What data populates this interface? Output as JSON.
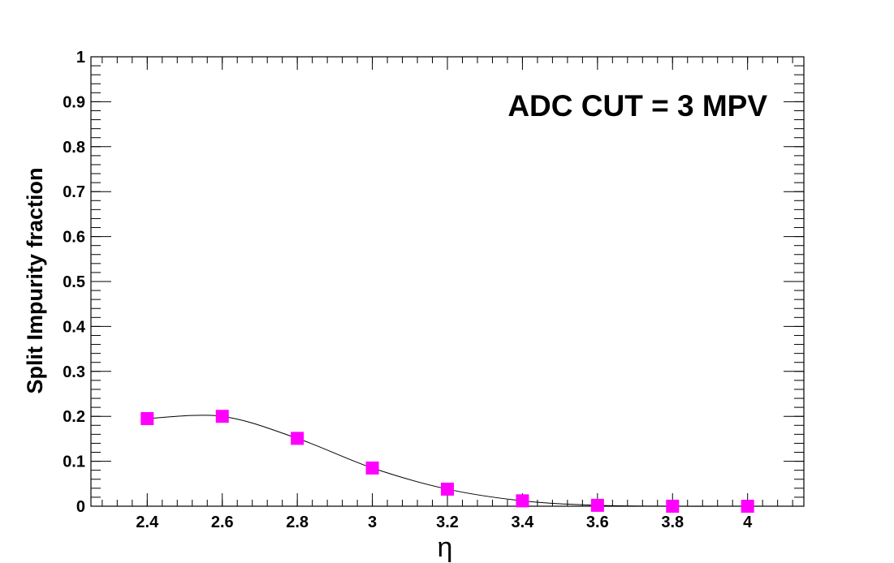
{
  "chart_data": {
    "type": "line",
    "title": "",
    "annotation": "ADC CUT = 3 MPV",
    "xlabel": "η",
    "ylabel": "Split Impurity fraction",
    "xlim": [
      2.25,
      4.15
    ],
    "ylim": [
      0,
      1
    ],
    "x_ticks": [
      2.4,
      2.6,
      2.8,
      3,
      3.2,
      3.4,
      3.6,
      3.8,
      4
    ],
    "x_tick_labels": [
      "2.4",
      "2.6",
      "2.8",
      "3",
      "3.2",
      "3.4",
      "3.6",
      "3.8",
      "4"
    ],
    "y_ticks": [
      0,
      0.1,
      0.2,
      0.3,
      0.4,
      0.5,
      0.6,
      0.7,
      0.8,
      0.9,
      1
    ],
    "y_tick_labels": [
      "0",
      "0.1",
      "0.2",
      "0.3",
      "0.4",
      "0.5",
      "0.6",
      "0.7",
      "0.8",
      "0.9",
      "1"
    ],
    "grid": false,
    "legend": "none",
    "series": [
      {
        "marker": "square",
        "marker_color": "#ff00ff",
        "line_color": "#000000",
        "x": [
          2.4,
          2.6,
          2.8,
          3.0,
          3.2,
          3.4,
          3.6,
          3.8,
          4.0
        ],
        "y": [
          0.195,
          0.2,
          0.151,
          0.085,
          0.038,
          0.012,
          0.002,
          0.0,
          0.0
        ]
      }
    ]
  }
}
